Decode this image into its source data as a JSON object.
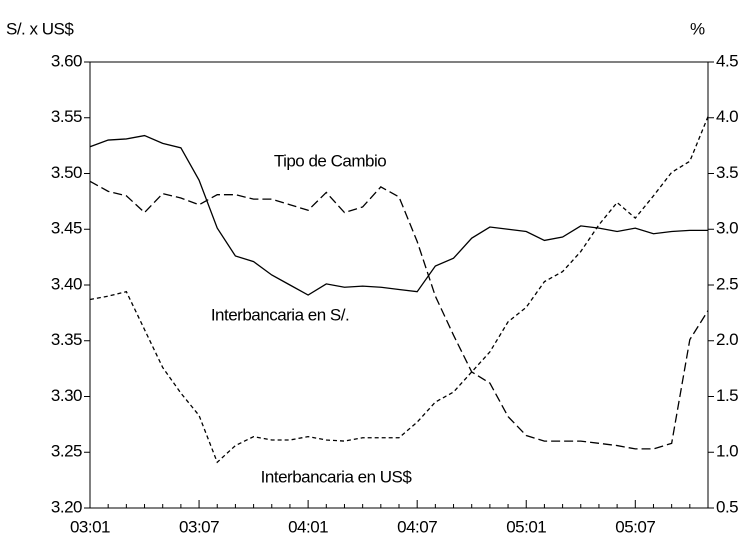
{
  "chart_data": {
    "type": "line",
    "y_axis_label": "S/. x US$",
    "y2_axis_label": "%",
    "annotations": [
      "Tipo de Cambio",
      "Interbancaria en S/.",
      "Interbancaria en US$"
    ],
    "categories": [
      "03:01",
      null,
      null,
      null,
      null,
      null,
      "03:07",
      null,
      null,
      null,
      null,
      null,
      "04:01",
      null,
      null,
      null,
      null,
      null,
      "04:07",
      null,
      null,
      null,
      null,
      null,
      "05:01",
      null,
      null,
      null,
      null,
      null,
      "05:07",
      null,
      null,
      null,
      null
    ],
    "ylim": [
      3.2,
      3.6
    ],
    "yticks": [
      {
        "value": 3.2,
        "label": "3.20"
      },
      3.25,
      {
        "value": 3.3,
        "label": "3.30"
      },
      3.35,
      {
        "value": 3.4,
        "label": "3.40"
      },
      3.45,
      {
        "value": 3.5,
        "label": "3.50"
      },
      3.55,
      {
        "value": 3.6,
        "label": "3.60"
      }
    ],
    "y2lim": [
      0.5,
      4.5
    ],
    "y2ticks": [
      0.5,
      {
        "value": 1,
        "label": "1.0"
      },
      1.5,
      {
        "value": 2,
        "label": "2.0"
      },
      2.5,
      {
        "value": 3,
        "label": "3.0"
      },
      3.5,
      {
        "value": 4,
        "label": "4.0"
      },
      4.5
    ],
    "grid": false,
    "series": [
      {
        "name": "Tipo de Cambio",
        "color": "#000000",
        "linestyle": "solid",
        "values": [
          3.524,
          3.53,
          3.531,
          3.534,
          3.527,
          3.523,
          3.494,
          3.451,
          3.426,
          3.421,
          3.409,
          3.4,
          3.391,
          3.401,
          3.398,
          3.399,
          3.398,
          3.396,
          3.394,
          3.417,
          3.424,
          3.442,
          3.452,
          3.45,
          3.448,
          3.44,
          3.443,
          3.453,
          3.451,
          3.448,
          3.451,
          3.446,
          3.448,
          3.449,
          3.449
        ]
      },
      {
        "name": "Interbancaria en S/.",
        "color": "#000000",
        "linestyle": "dashed",
        "axis": "y2",
        "values": [
          3.43,
          3.34,
          3.3,
          3.15,
          3.32,
          3.28,
          3.22,
          3.31,
          3.31,
          3.27,
          3.27,
          3.22,
          3.17,
          3.33,
          3.15,
          3.2,
          3.38,
          3.29,
          2.89,
          2.4,
          2.05,
          1.72,
          1.62,
          1.32,
          1.15,
          1.1,
          1.1,
          1.1,
          1.08,
          1.06,
          1.03,
          1.03,
          1.08,
          2.01,
          2.27
        ]
      },
      {
        "name": "Interbancaria en US$",
        "color": "#000000",
        "linestyle": "dotted",
        "axis": "y2",
        "values": [
          2.37,
          2.4,
          2.44,
          2.1,
          1.76,
          1.53,
          1.33,
          0.91,
          1.06,
          1.14,
          1.11,
          1.11,
          1.14,
          1.11,
          1.1,
          1.13,
          1.13,
          1.13,
          1.27,
          1.45,
          1.54,
          1.72,
          1.9,
          2.17,
          2.3,
          2.53,
          2.62,
          2.8,
          3.04,
          3.24,
          3.1,
          3.3,
          3.51,
          3.61,
          4.01
        ]
      }
    ]
  }
}
